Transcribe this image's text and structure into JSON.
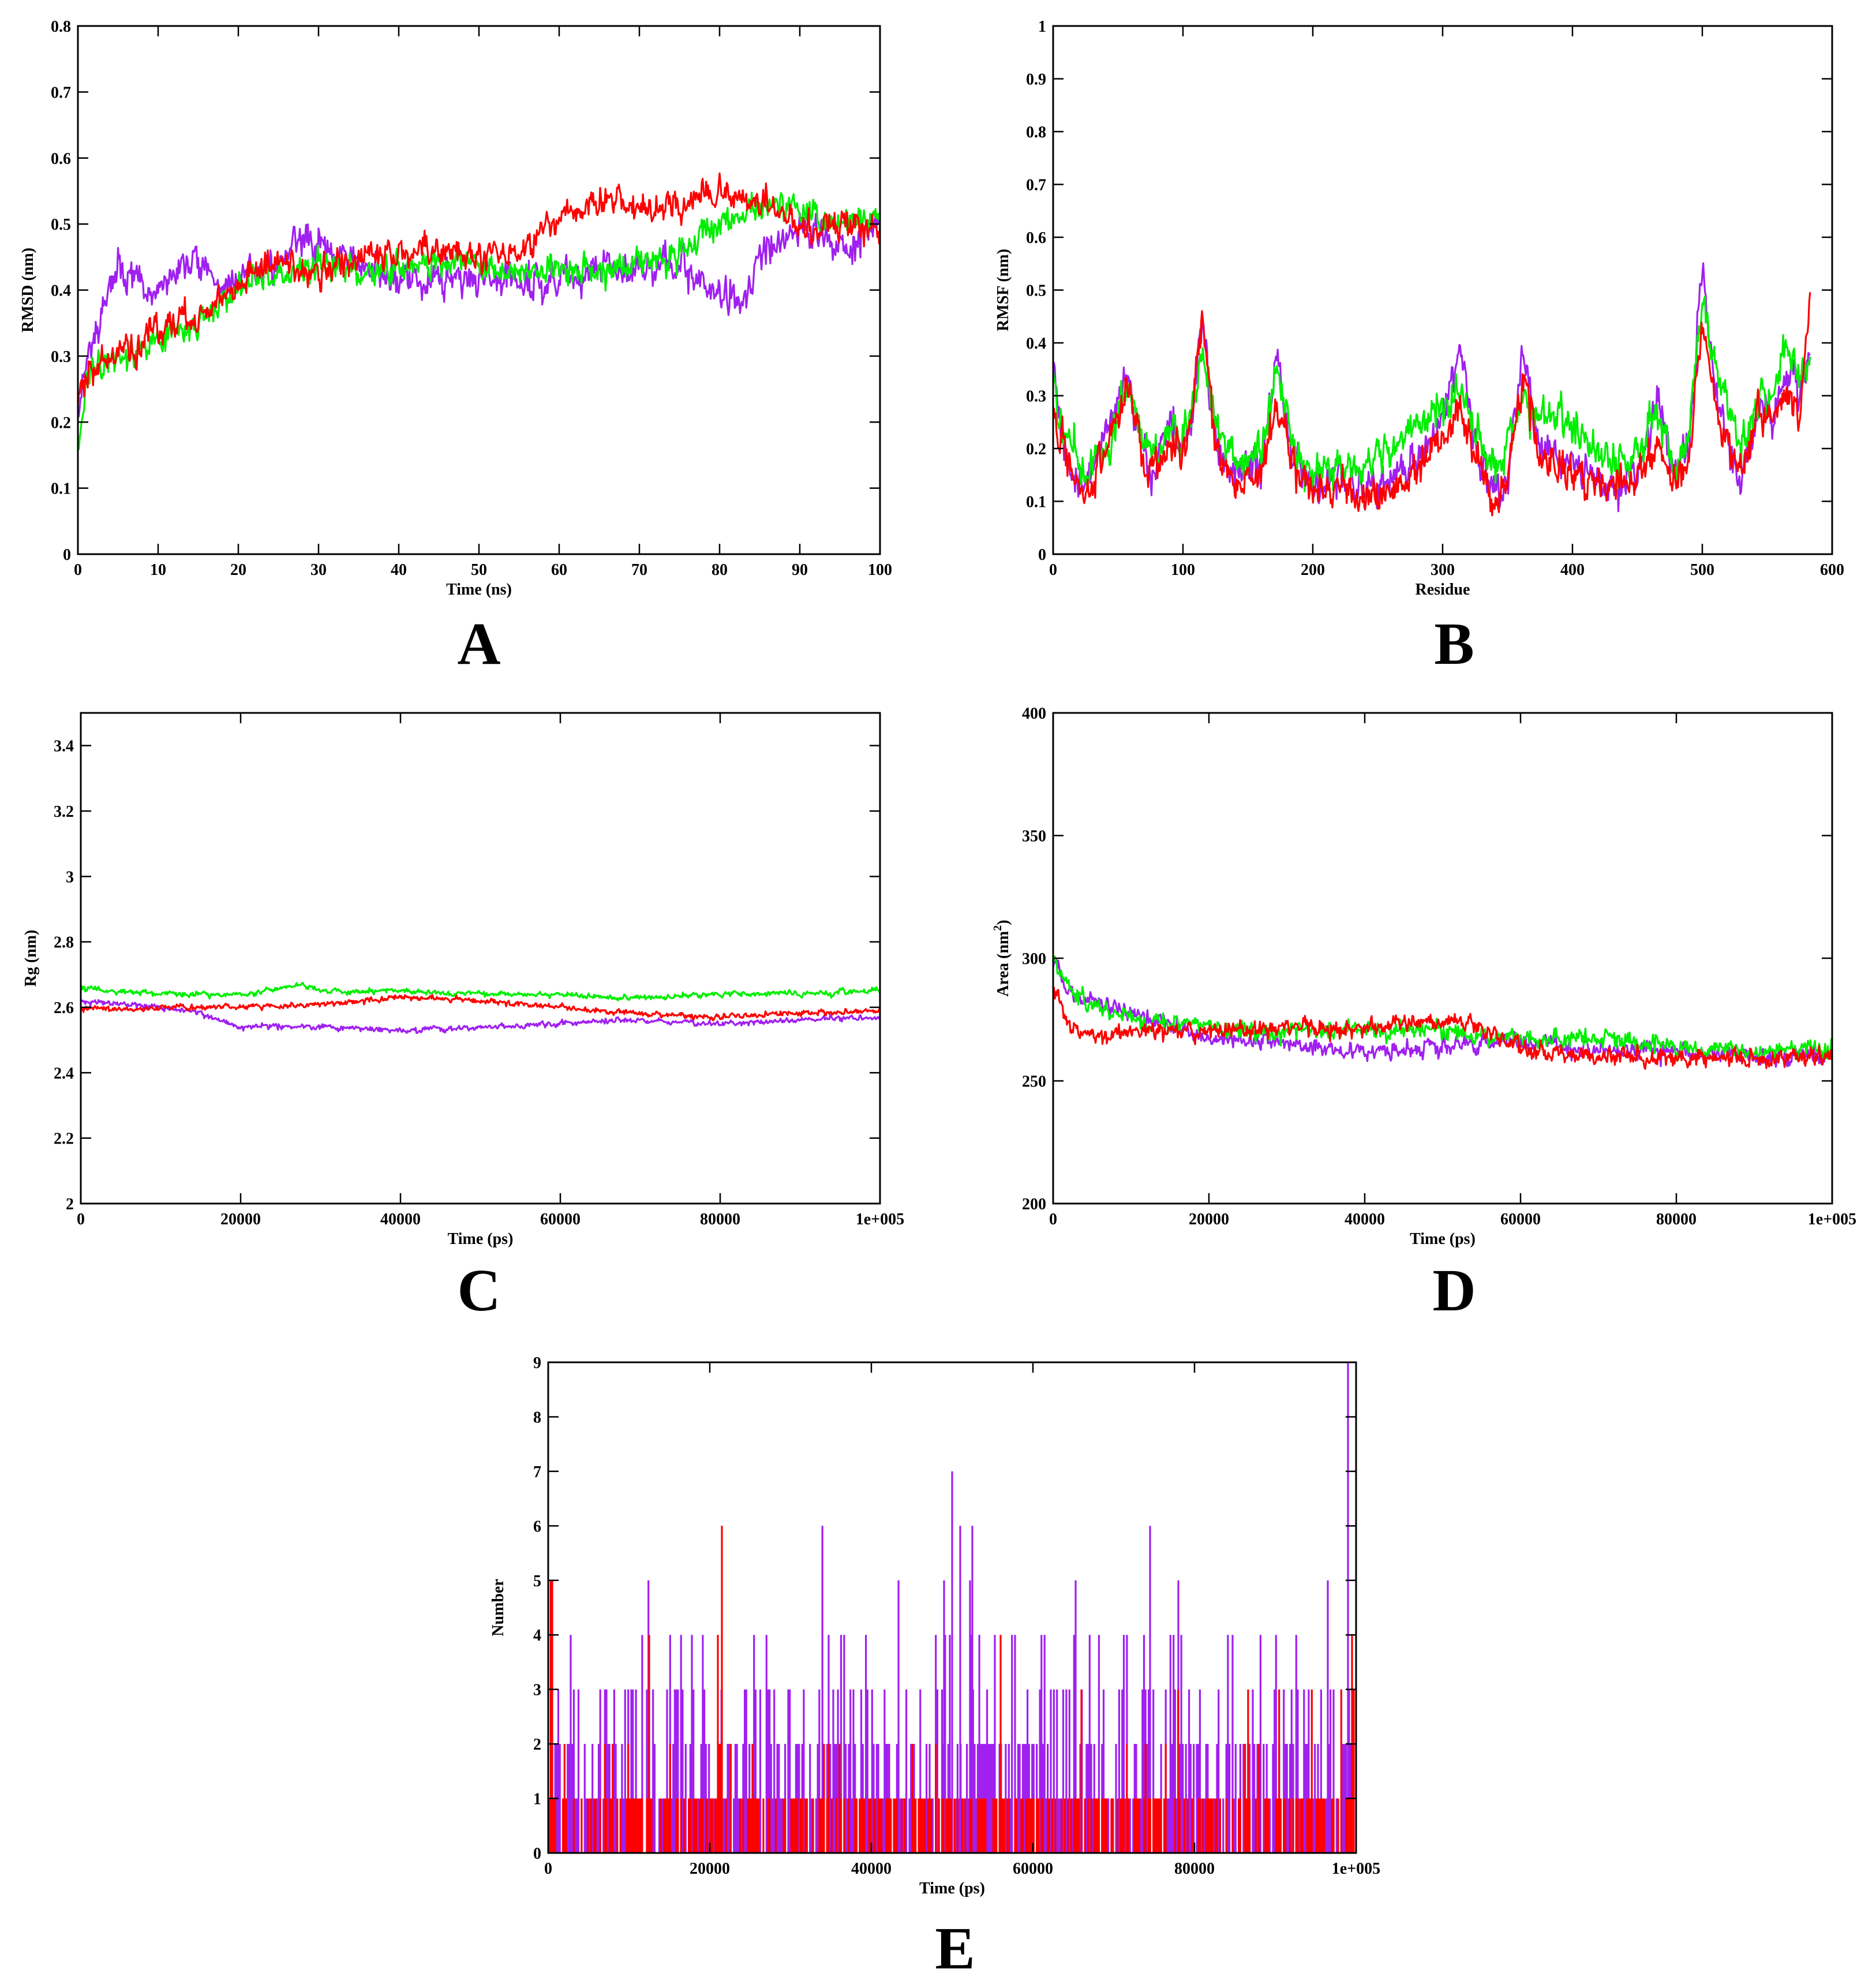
{
  "figure": {
    "panel_letters": [
      "A",
      "B",
      "C",
      "D",
      "E"
    ]
  },
  "colors": {
    "red": "#ff0000",
    "green": "#00ee00",
    "purple": "#a020f0"
  },
  "chart_data": [
    {
      "panel": "A",
      "type": "line",
      "xlabel": "Time (ns)",
      "ylabel": "RMSD (nm)",
      "xlim": [
        0,
        100
      ],
      "ylim": [
        0,
        0.8
      ],
      "xticks": [
        0,
        10,
        20,
        30,
        40,
        50,
        60,
        70,
        80,
        90,
        100
      ],
      "xtick_labels": [
        "0",
        "10",
        "20",
        "30",
        "40",
        "50",
        "60",
        "70",
        "80",
        "90",
        "100"
      ],
      "yticks": [
        0,
        0.1,
        0.2,
        0.3,
        0.4,
        0.5,
        0.6,
        0.7,
        0.8
      ],
      "ytick_labels": [
        "0",
        "0.1",
        "0.2",
        "0.3",
        "0.4",
        "0.5",
        "0.6",
        "0.7",
        "0.8"
      ],
      "series": [
        {
          "name": "purple",
          "color": "#a020f0",
          "noise": 0.018,
          "seed": 11,
          "x": [
            0,
            1,
            2,
            3,
            5,
            7,
            9,
            12,
            15,
            18,
            20,
            25,
            28,
            30,
            35,
            40,
            45,
            50,
            55,
            60,
            65,
            70,
            75,
            80,
            83,
            85,
            88,
            90,
            95,
            100
          ],
          "y": [
            0.22,
            0.3,
            0.33,
            0.36,
            0.43,
            0.42,
            0.38,
            0.43,
            0.45,
            0.4,
            0.42,
            0.44,
            0.48,
            0.46,
            0.44,
            0.41,
            0.42,
            0.42,
            0.41,
            0.42,
            0.43,
            0.44,
            0.43,
            0.4,
            0.37,
            0.45,
            0.48,
            0.5,
            0.46,
            0.5
          ]
        },
        {
          "name": "green",
          "color": "#00ee00",
          "noise": 0.016,
          "seed": 23,
          "x": [
            0,
            1,
            3,
            5,
            8,
            10,
            15,
            18,
            20,
            25,
            30,
            35,
            40,
            45,
            50,
            55,
            60,
            65,
            70,
            75,
            80,
            85,
            90,
            95,
            100
          ],
          "y": [
            0.16,
            0.26,
            0.29,
            0.3,
            0.31,
            0.32,
            0.35,
            0.38,
            0.41,
            0.42,
            0.44,
            0.43,
            0.44,
            0.44,
            0.44,
            0.43,
            0.43,
            0.43,
            0.44,
            0.46,
            0.5,
            0.53,
            0.52,
            0.5,
            0.52
          ]
        },
        {
          "name": "red",
          "color": "#ff0000",
          "noise": 0.017,
          "seed": 37,
          "x": [
            0,
            1,
            3,
            5,
            8,
            10,
            15,
            18,
            20,
            25,
            30,
            35,
            40,
            45,
            50,
            55,
            58,
            60,
            65,
            70,
            75,
            80,
            85,
            90,
            95,
            100
          ],
          "y": [
            0.25,
            0.27,
            0.29,
            0.3,
            0.32,
            0.34,
            0.36,
            0.39,
            0.42,
            0.44,
            0.43,
            0.45,
            0.46,
            0.46,
            0.45,
            0.46,
            0.49,
            0.5,
            0.54,
            0.52,
            0.53,
            0.55,
            0.53,
            0.5,
            0.49,
            0.5
          ]
        }
      ]
    },
    {
      "panel": "B",
      "type": "line",
      "xlabel": "Residue",
      "ylabel": "RMSF (nm)",
      "xlim": [
        0,
        600
      ],
      "ylim": [
        0,
        1
      ],
      "xticks": [
        0,
        100,
        200,
        300,
        400,
        500,
        600
      ],
      "xtick_labels": [
        "0",
        "100",
        "200",
        "300",
        "400",
        "500",
        "600"
      ],
      "yticks": [
        0,
        0.1,
        0.2,
        0.3,
        0.4,
        0.5,
        0.6,
        0.7,
        0.8,
        0.9,
        1
      ],
      "ytick_labels": [
        "0",
        "0.1",
        "0.2",
        "0.3",
        "0.4",
        "0.5",
        "0.6",
        "0.7",
        "0.8",
        "0.9",
        "1"
      ],
      "series": [
        {
          "name": "purple",
          "color": "#a020f0",
          "noise": 0.025,
          "seed": 41,
          "x": [
            0,
            5,
            15,
            25,
            35,
            45,
            55,
            60,
            70,
            80,
            90,
            100,
            108,
            115,
            125,
            140,
            160,
            172,
            185,
            200,
            220,
            240,
            260,
            280,
            300,
            313,
            325,
            340,
            350,
            362,
            375,
            390,
            410,
            430,
            450,
            465,
            480,
            490,
            500,
            510,
            520,
            530,
            545,
            555,
            565,
            575,
            583
          ],
          "y": [
            0.35,
            0.25,
            0.15,
            0.13,
            0.2,
            0.25,
            0.33,
            0.3,
            0.18,
            0.17,
            0.25,
            0.2,
            0.28,
            0.45,
            0.2,
            0.15,
            0.17,
            0.38,
            0.18,
            0.12,
            0.14,
            0.12,
            0.15,
            0.18,
            0.25,
            0.4,
            0.2,
            0.12,
            0.14,
            0.38,
            0.2,
            0.18,
            0.15,
            0.13,
            0.14,
            0.3,
            0.14,
            0.2,
            0.55,
            0.3,
            0.2,
            0.14,
            0.3,
            0.25,
            0.35,
            0.3,
            0.38
          ]
        },
        {
          "name": "green",
          "color": "#00ee00",
          "noise": 0.025,
          "seed": 53,
          "x": [
            0,
            5,
            15,
            25,
            35,
            45,
            55,
            60,
            70,
            80,
            90,
            100,
            108,
            115,
            125,
            140,
            160,
            172,
            185,
            200,
            220,
            240,
            260,
            280,
            300,
            313,
            325,
            340,
            350,
            362,
            375,
            390,
            410,
            430,
            450,
            465,
            480,
            490,
            500,
            510,
            520,
            530,
            545,
            555,
            565,
            575,
            583
          ],
          "y": [
            0.38,
            0.25,
            0.2,
            0.15,
            0.18,
            0.22,
            0.32,
            0.3,
            0.2,
            0.2,
            0.24,
            0.22,
            0.28,
            0.38,
            0.25,
            0.17,
            0.2,
            0.35,
            0.22,
            0.15,
            0.18,
            0.17,
            0.2,
            0.25,
            0.28,
            0.3,
            0.25,
            0.17,
            0.22,
            0.3,
            0.25,
            0.28,
            0.2,
            0.17,
            0.18,
            0.28,
            0.16,
            0.25,
            0.5,
            0.35,
            0.28,
            0.2,
            0.3,
            0.3,
            0.4,
            0.32,
            0.38
          ]
        },
        {
          "name": "red",
          "color": "#ff0000",
          "noise": 0.025,
          "seed": 67,
          "x": [
            0,
            5,
            15,
            25,
            35,
            45,
            55,
            60,
            70,
            80,
            90,
            100,
            108,
            115,
            125,
            140,
            160,
            172,
            185,
            200,
            220,
            240,
            260,
            280,
            300,
            313,
            325,
            340,
            350,
            362,
            375,
            390,
            410,
            430,
            450,
            465,
            480,
            490,
            500,
            510,
            520,
            530,
            545,
            555,
            565,
            575,
            583
          ],
          "y": [
            0.3,
            0.22,
            0.15,
            0.1,
            0.18,
            0.22,
            0.3,
            0.28,
            0.18,
            0.17,
            0.22,
            0.2,
            0.3,
            0.45,
            0.2,
            0.13,
            0.15,
            0.28,
            0.17,
            0.12,
            0.13,
            0.1,
            0.12,
            0.15,
            0.22,
            0.28,
            0.2,
            0.1,
            0.14,
            0.35,
            0.18,
            0.17,
            0.14,
            0.13,
            0.14,
            0.2,
            0.14,
            0.18,
            0.45,
            0.28,
            0.2,
            0.15,
            0.28,
            0.25,
            0.3,
            0.25,
            0.5
          ]
        }
      ]
    },
    {
      "panel": "C",
      "type": "line",
      "xlabel": "Time (ps)",
      "ylabel": "Rg (nm)",
      "xlim": [
        0,
        100000
      ],
      "ylim": [
        2,
        3.5
      ],
      "xticks": [
        0,
        20000,
        40000,
        60000,
        80000,
        100000
      ],
      "xtick_labels": [
        "0",
        "20000",
        "40000",
        "60000",
        "80000",
        "1e+005"
      ],
      "yticks": [
        2,
        2.2,
        2.4,
        2.6,
        2.8,
        3,
        3.2,
        3.4
      ],
      "ytick_labels": [
        "2",
        "2.2",
        "2.4",
        "2.6",
        "2.8",
        "3",
        "3.2",
        "3.4"
      ],
      "series": [
        {
          "name": "purple",
          "color": "#a020f0",
          "noise": 0.006,
          "seed": 71,
          "x": [
            0,
            5000,
            10000,
            15000,
            18000,
            20000,
            30000,
            40000,
            50000,
            60000,
            70000,
            80000,
            90000,
            100000
          ],
          "y": [
            2.62,
            2.61,
            2.6,
            2.58,
            2.56,
            2.54,
            2.54,
            2.53,
            2.54,
            2.55,
            2.56,
            2.55,
            2.56,
            2.57
          ]
        },
        {
          "name": "green",
          "color": "#00ee00",
          "noise": 0.006,
          "seed": 83,
          "x": [
            0,
            5000,
            10000,
            20000,
            28000,
            30000,
            40000,
            50000,
            60000,
            65000,
            70000,
            80000,
            90000,
            100000
          ],
          "y": [
            2.66,
            2.65,
            2.64,
            2.64,
            2.67,
            2.65,
            2.65,
            2.64,
            2.64,
            2.63,
            2.63,
            2.64,
            2.64,
            2.65
          ]
        },
        {
          "name": "red",
          "color": "#ff0000",
          "noise": 0.006,
          "seed": 97,
          "x": [
            0,
            5000,
            10000,
            20000,
            30000,
            40000,
            45000,
            50000,
            60000,
            70000,
            80000,
            90000,
            100000
          ],
          "y": [
            2.6,
            2.59,
            2.6,
            2.6,
            2.61,
            2.63,
            2.63,
            2.62,
            2.6,
            2.58,
            2.57,
            2.58,
            2.59
          ]
        }
      ]
    },
    {
      "panel": "D",
      "type": "line",
      "xlabel": "Time (ps)",
      "ylabel": "Area (nm",
      "ylabel_superscript": "2",
      "ylabel_suffix": ")",
      "xlim": [
        0,
        100000
      ],
      "ylim": [
        200,
        400
      ],
      "xticks": [
        0,
        20000,
        40000,
        60000,
        80000,
        100000
      ],
      "xtick_labels": [
        "0",
        "20000",
        "40000",
        "60000",
        "80000",
        "1e+005"
      ],
      "yticks": [
        200,
        250,
        300,
        350,
        400
      ],
      "ytick_labels": [
        "200",
        "250",
        "300",
        "350",
        "400"
      ],
      "series": [
        {
          "name": "purple",
          "color": "#a020f0",
          "noise": 2.5,
          "seed": 103,
          "x": [
            0,
            2000,
            5000,
            10000,
            20000,
            30000,
            40000,
            50000,
            60000,
            70000,
            80000,
            90000,
            100000
          ],
          "y": [
            298,
            285,
            282,
            277,
            268,
            265,
            262,
            264,
            266,
            263,
            262,
            260,
            260
          ]
        },
        {
          "name": "green",
          "color": "#00ee00",
          "noise": 2.5,
          "seed": 109,
          "x": [
            0,
            2000,
            5000,
            10000,
            20000,
            30000,
            40000,
            50000,
            60000,
            70000,
            80000,
            90000,
            100000
          ],
          "y": [
            300,
            288,
            280,
            276,
            272,
            270,
            270,
            270,
            268,
            267,
            264,
            262,
            263
          ]
        },
        {
          "name": "red",
          "color": "#ff0000",
          "noise": 2.5,
          "seed": 113,
          "x": [
            0,
            2000,
            5000,
            10000,
            20000,
            30000,
            40000,
            47000,
            55000,
            60000,
            70000,
            80000,
            90000,
            100000
          ],
          "y": [
            290,
            272,
            268,
            270,
            270,
            272,
            271,
            275,
            272,
            263,
            260,
            260,
            259,
            260
          ]
        }
      ]
    },
    {
      "panel": "E",
      "type": "bar",
      "xlabel": "Time (ps)",
      "ylabel": "Number",
      "xlim": [
        0,
        100000
      ],
      "ylim": [
        0,
        9
      ],
      "xticks": [
        0,
        20000,
        40000,
        60000,
        80000,
        100000
      ],
      "xtick_labels": [
        "0",
        "20000",
        "40000",
        "60000",
        "80000",
        "1e+005"
      ],
      "yticks": [
        0,
        1,
        2,
        3,
        4,
        5,
        6,
        7,
        8,
        9
      ],
      "ytick_labels": [
        "0",
        "1",
        "2",
        "3",
        "4",
        "5",
        "6",
        "7",
        "8",
        "9"
      ],
      "series": [
        {
          "name": "purple",
          "color": "#a020f0",
          "seed": 131,
          "bins": 520,
          "weights": [
            0.22,
            0.3,
            0.25,
            0.14,
            0.07,
            0.015,
            0.005
          ],
          "peaks": [
            [
              50000,
              7
            ],
            [
              51000,
              6
            ],
            [
              52500,
              6
            ],
            [
              74500,
              6
            ],
            [
              78000,
              5
            ],
            [
              49000,
              5
            ],
            [
              96500,
              5
            ],
            [
              99000,
              9
            ]
          ]
        },
        {
          "name": "red",
          "color": "#ff0000",
          "seed": 137,
          "bins": 520,
          "weights": [
            0.45,
            0.5,
            0.04,
            0.01
          ],
          "peaks": [
            [
              300,
              5
            ],
            [
              500,
              5
            ],
            [
              12500,
              4
            ],
            [
              21500,
              6
            ],
            [
              21000,
              4
            ],
            [
              56000,
              4
            ],
            [
              66000,
              3
            ],
            [
              99500,
              4
            ]
          ]
        }
      ]
    }
  ]
}
